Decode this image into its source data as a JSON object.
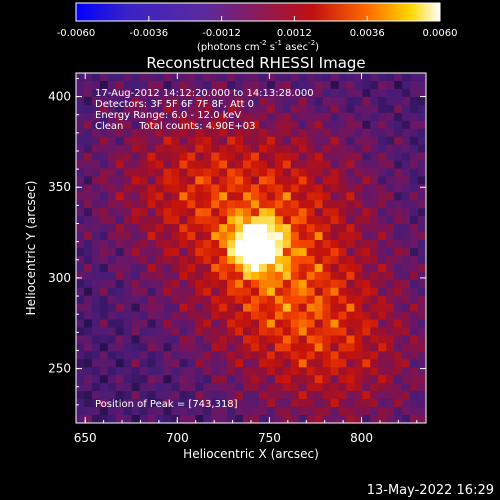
{
  "colorbar": {
    "ticks": [
      "-0.0060",
      "-0.0036",
      "-0.0012",
      "0.0012",
      "0.0036",
      "0.0060"
    ],
    "tick_values": [
      -0.006,
      -0.0036,
      -0.0012,
      0.0012,
      0.0036,
      0.006
    ],
    "unit_main": "(photons cm",
    "unit_exp1": "-2",
    "unit_mid": " s",
    "unit_exp2": "-1",
    "unit_end": " asec",
    "unit_exp3": "-2",
    "unit_close": ")",
    "range": [
      -0.006,
      0.006
    ],
    "colors": [
      "#0000ff",
      "#3a22c8",
      "#5a2a9e",
      "#8a1a5a",
      "#c01010",
      "#ff6a00",
      "#ffd800",
      "#ffffff"
    ]
  },
  "chart_data": {
    "type": "heatmap",
    "title": "Reconstructed RHESSI Image",
    "xlabel": "Heliocentric X (arcsec)",
    "ylabel": "Heliocentric Y (arcsec)",
    "xlim": [
      645,
      835
    ],
    "ylim": [
      220,
      413
    ],
    "xticks": [
      650,
      700,
      750,
      800
    ],
    "yticks": [
      250,
      300,
      350,
      400
    ],
    "peak": {
      "x": 743,
      "y": 318
    },
    "sources": [
      {
        "x": 743,
        "y": 318,
        "amp": 1.0
      },
      {
        "x": 705,
        "y": 352,
        "amp": 0.45
      },
      {
        "x": 750,
        "y": 292,
        "amp": 0.45
      },
      {
        "x": 790,
        "y": 260,
        "amp": 0.4
      },
      {
        "x": 765,
        "y": 345,
        "amp": 0.35
      }
    ],
    "annotations": {
      "time": "17-Aug-2012 14:12:20.000 to 14:13:28.000",
      "detectors": "Detectors: 3F 5F 6F 7F 8F, Att 0",
      "energy": "Energy Range: 6.0 - 12.0 keV",
      "method": "Clean     Total counts: 4.90E+03",
      "peak_text": "Position of Peak = [743,318]"
    }
  },
  "footer": {
    "timestamp": "13-May-2022 16:29"
  }
}
